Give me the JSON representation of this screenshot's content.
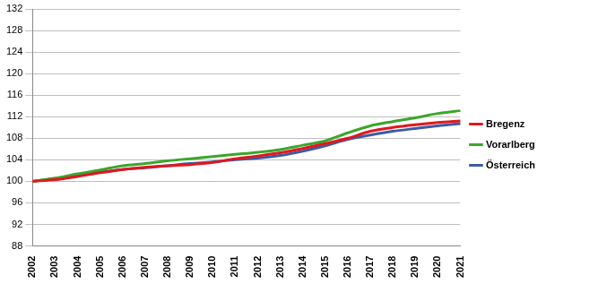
{
  "chart_data": {
    "type": "line",
    "categories": [
      "2002",
      "2003",
      "2004",
      "2005",
      "2006",
      "2007",
      "2008",
      "2009",
      "2010",
      "2011",
      "2012",
      "2013",
      "2014",
      "2015",
      "2016",
      "2017",
      "2018",
      "2019",
      "2020",
      "2021"
    ],
    "series": [
      {
        "name": "Bregenz",
        "color": "#e3161e",
        "values": [
          100,
          100.3,
          100.9,
          101.6,
          102.2,
          102.6,
          102.9,
          103.1,
          103.5,
          104.2,
          104.7,
          105.3,
          106.1,
          107.0,
          108.0,
          109.3,
          110.0,
          110.5,
          110.9,
          111.2
        ]
      },
      {
        "name": "Vorarlberg",
        "color": "#3aa62a",
        "values": [
          100,
          100.6,
          101.4,
          102.1,
          102.9,
          103.3,
          103.8,
          104.2,
          104.6,
          105.0,
          105.4,
          105.9,
          106.7,
          107.5,
          109.0,
          110.3,
          111.1,
          111.8,
          112.6,
          113.1
        ]
      },
      {
        "name": "Österreich",
        "color": "#3b5ba6",
        "values": [
          100,
          100.5,
          101.1,
          101.7,
          102.2,
          102.5,
          102.9,
          103.3,
          103.6,
          104.0,
          104.3,
          104.8,
          105.6,
          106.6,
          107.8,
          108.6,
          109.3,
          109.8,
          110.3,
          110.7
        ]
      }
    ],
    "ylim": [
      88,
      132
    ],
    "yticks": [
      88,
      92,
      96,
      100,
      104,
      108,
      112,
      116,
      120,
      124,
      128,
      132
    ],
    "grid": true,
    "legend": "right"
  }
}
